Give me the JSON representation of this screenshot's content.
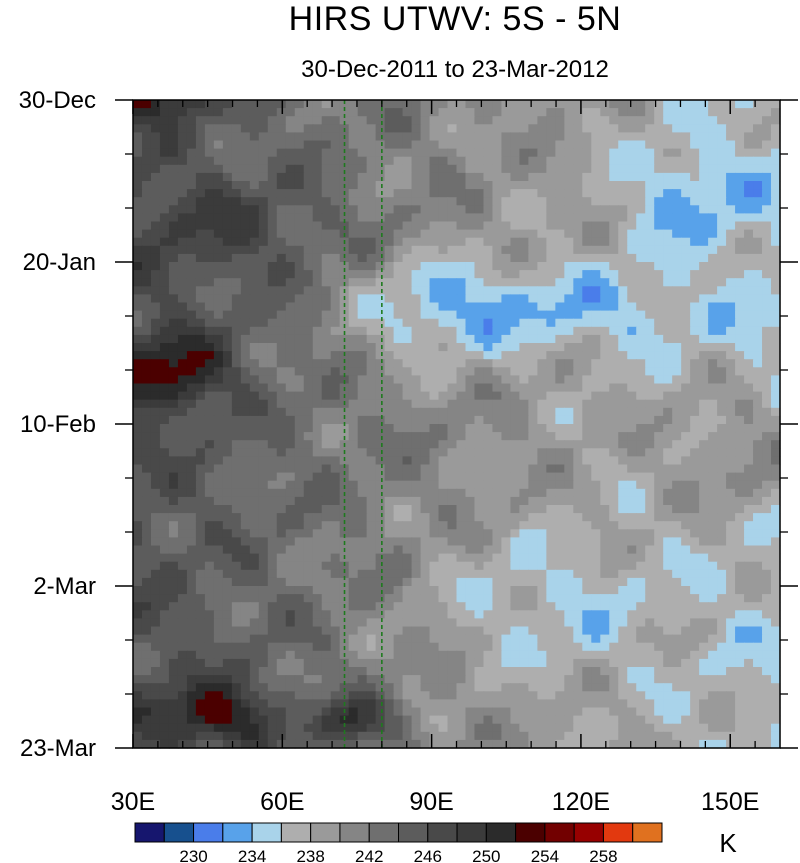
{
  "title": "HIRS UTWV: 5S - 5N",
  "subtitle": "30-Dec-2011 to 23-Mar-2012",
  "chart_data": {
    "type": "heatmap",
    "xlim": [
      30,
      160
    ],
    "x_ticks": [
      {
        "value": 30,
        "label": "30E"
      },
      {
        "value": 60,
        "label": "60E"
      },
      {
        "value": 90,
        "label": "90E"
      },
      {
        "value": 120,
        "label": "120E"
      },
      {
        "value": 150,
        "label": "150E"
      }
    ],
    "ylim": [
      "2011-12-30",
      "2012-03-23"
    ],
    "y_ticks": [
      {
        "value": "2011-12-30",
        "label": "30-Dec"
      },
      {
        "value": "2012-01-20",
        "label": "20-Jan"
      },
      {
        "value": "2012-02-10",
        "label": "10-Feb"
      },
      {
        "value": "2012-03-02",
        "label": "2-Mar"
      },
      {
        "value": "2012-03-23",
        "label": "23-Mar"
      }
    ],
    "reference_lines_lon": [
      72.5,
      80
    ],
    "colorbar": {
      "unit": "K",
      "levels": [
        228,
        230,
        232,
        234,
        236,
        238,
        240,
        242,
        244,
        246,
        248,
        250,
        252,
        254,
        256,
        258,
        260
      ],
      "labels": [
        "230",
        "234",
        "238",
        "242",
        "246",
        "250",
        "254",
        "258"
      ],
      "colors": [
        "#16166e",
        "#17508e",
        "#4a7dea",
        "#58a2ea",
        "#a9d3ea",
        "#aeaeae",
        "#9a9a9a",
        "#858585",
        "#6f6f6f",
        "#5c5c5c",
        "#494949",
        "#3b3b3b",
        "#2b2b2b",
        "#4b0000",
        "#720000",
        "#970000",
        "#e2390f",
        "#e0711f"
      ]
    }
  }
}
